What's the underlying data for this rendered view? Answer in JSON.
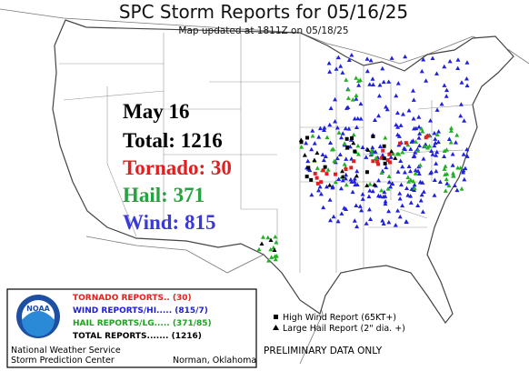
{
  "header": {
    "title": "SPC Storm Reports for 05/16/25",
    "subtitle": "Map updated at 1811Z on 05/18/25"
  },
  "summary": {
    "date": "May 16",
    "total": "Total: 1216",
    "tornado": "Tornado: 30",
    "hail": "Hail: 371",
    "wind": "Wind: 815"
  },
  "legend": {
    "tornado": "TORNADO REPORTS.. (30)",
    "wind": "WIND REPORTS/HI..... (815/7)",
    "hail": "HAIL REPORTS/LG..... (371/85)",
    "total": "TOTAL REPORTS....... (1216)",
    "high_wind": "High Wind Report (65KT+)",
    "large_hail": "Large Hail Report (2\" dia. +)"
  },
  "agency": {
    "logo": "NOAA",
    "service": "National Weather Service",
    "center": "Storm Prediction Center",
    "location": "Norman, Oklahoma"
  },
  "footer": {
    "notice": "PRELIMINARY DATA ONLY"
  }
}
